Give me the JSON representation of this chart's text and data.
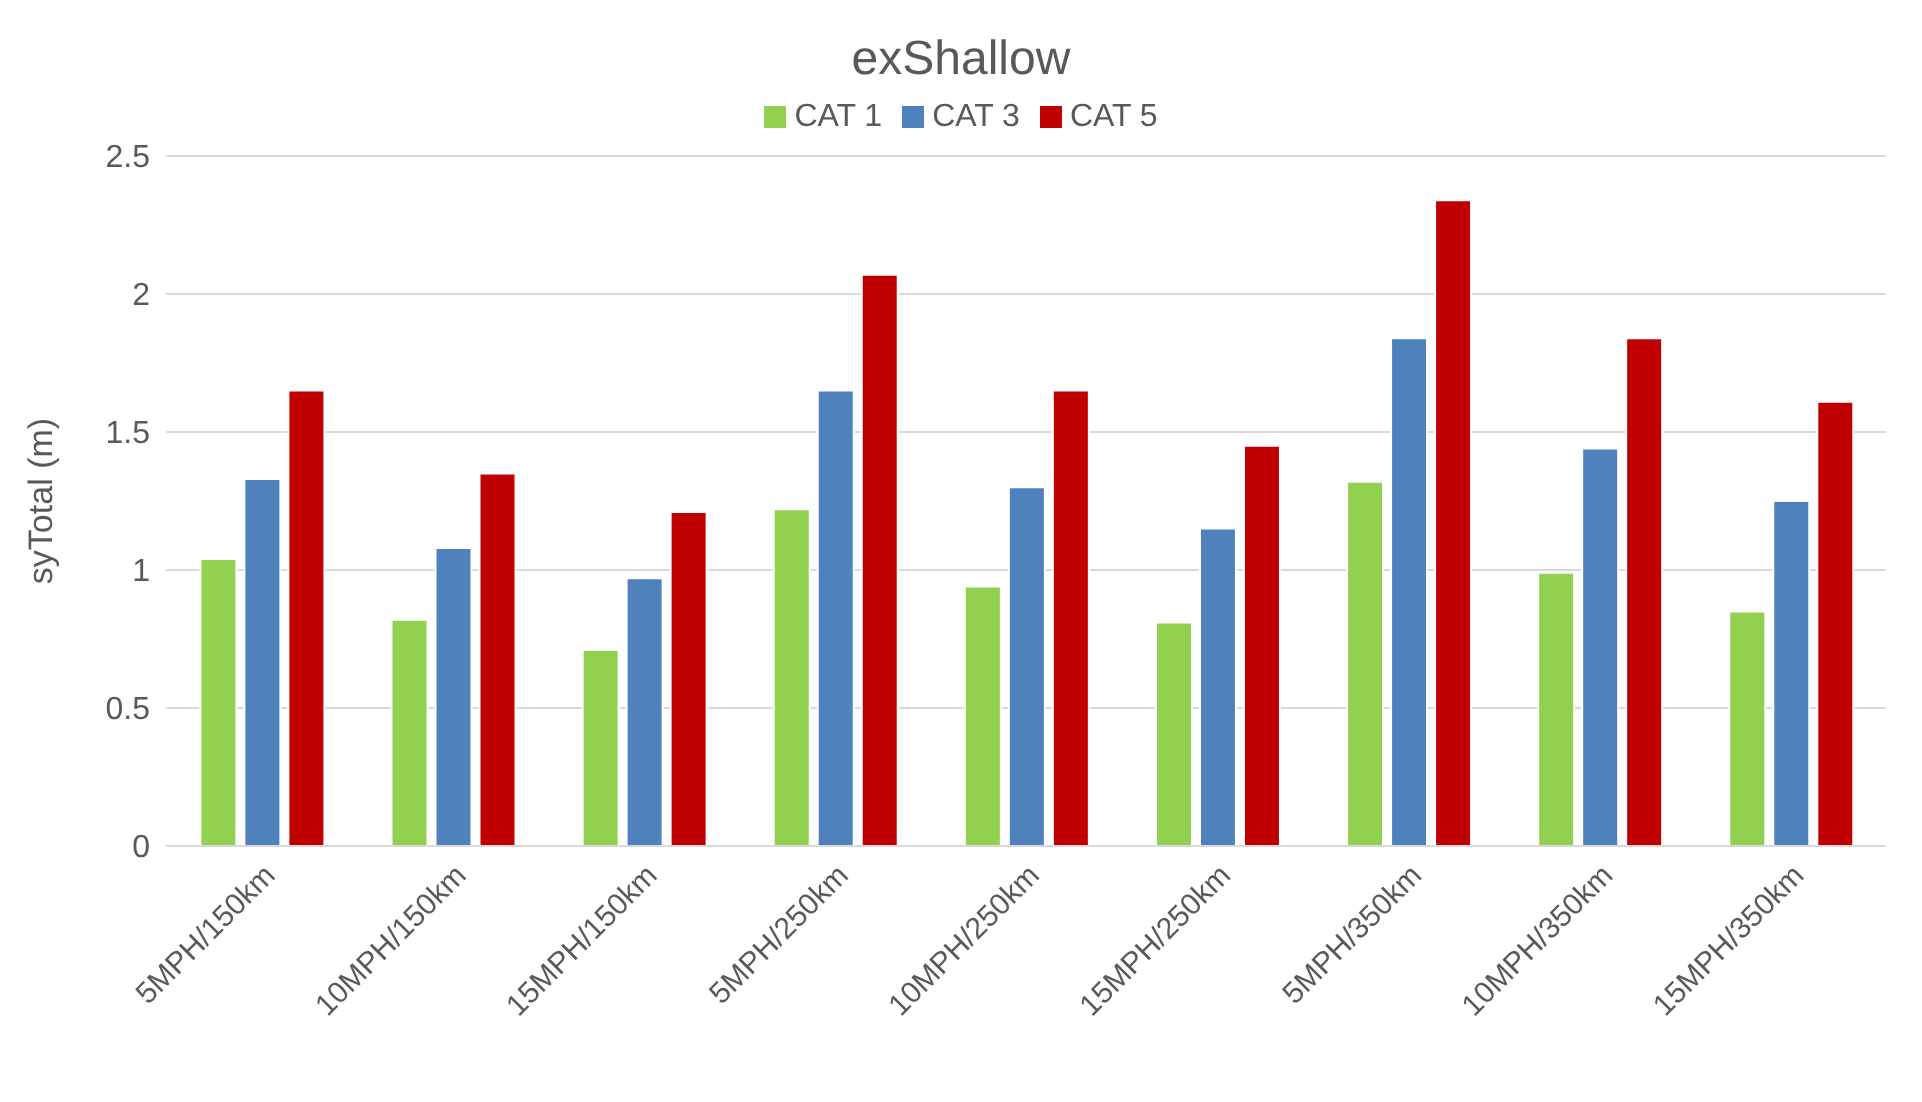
{
  "chart_data": {
    "type": "bar",
    "title": "exShallow",
    "ylabel": "syTotal (m)",
    "categories": [
      "5MPH/150km",
      "10MPH/150km",
      "15MPH/150km",
      "5MPH/250km",
      "10MPH/250km",
      "15MPH/250km",
      "5MPH/350km",
      "10MPH/350km",
      "15MPH/350km"
    ],
    "series": [
      {
        "name": "CAT 1",
        "color": "#92d050",
        "values": [
          1.04,
          0.82,
          0.71,
          1.22,
          0.94,
          0.81,
          1.32,
          0.99,
          0.85
        ]
      },
      {
        "name": "CAT 3",
        "color": "#4f81bd",
        "values": [
          1.33,
          1.08,
          0.97,
          1.65,
          1.3,
          1.15,
          1.84,
          1.44,
          1.25
        ]
      },
      {
        "name": "CAT 5",
        "color": "#c00000",
        "values": [
          1.65,
          1.35,
          1.21,
          2.07,
          1.65,
          1.45,
          2.34,
          1.84,
          1.61
        ]
      }
    ],
    "ylim": [
      0,
      2.5
    ],
    "yticks": [
      0,
      0.5,
      1,
      1.5,
      2,
      2.5
    ],
    "grid": "y",
    "legend": "top"
  }
}
